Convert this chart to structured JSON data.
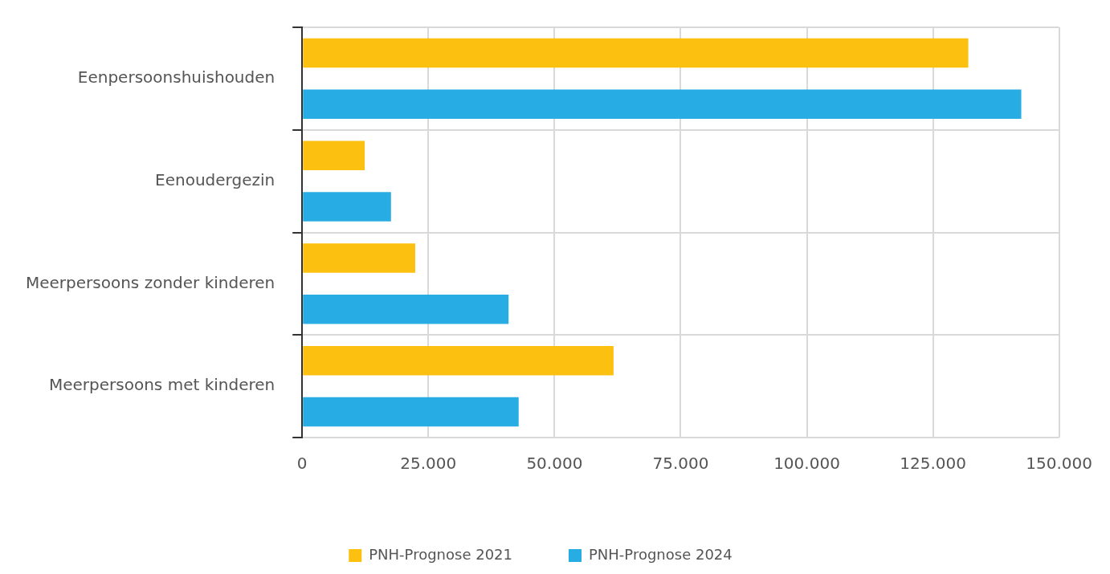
{
  "chart_data": {
    "type": "bar",
    "orientation": "horizontal",
    "categories": [
      "Eenpersoonshuishouden",
      "Eenoudergezin",
      "Meerpersoons zonder kinderen",
      "Meerpersoons met kinderen"
    ],
    "series": [
      {
        "name": "PNH-Prognose 2021",
        "color": "#fcc010",
        "values": [
          132000,
          12400,
          22400,
          61700
        ]
      },
      {
        "name": "PNH-Prognose 2024",
        "color": "#27ace3",
        "values": [
          142500,
          17600,
          40900,
          42900
        ]
      }
    ],
    "xlim": [
      0,
      150000
    ],
    "xticks": [
      0,
      {
        "value": 25000,
        "label": "25.000"
      },
      {
        "value": 50000,
        "label": "50.000"
      },
      {
        "value": 75000,
        "label": "75.000"
      },
      {
        "value": 100000,
        "label": "100.000"
      },
      {
        "value": 125000,
        "label": "125.000"
      },
      {
        "value": 150000,
        "label": "150.000"
      }
    ],
    "grid": true,
    "legend": "bottom"
  }
}
